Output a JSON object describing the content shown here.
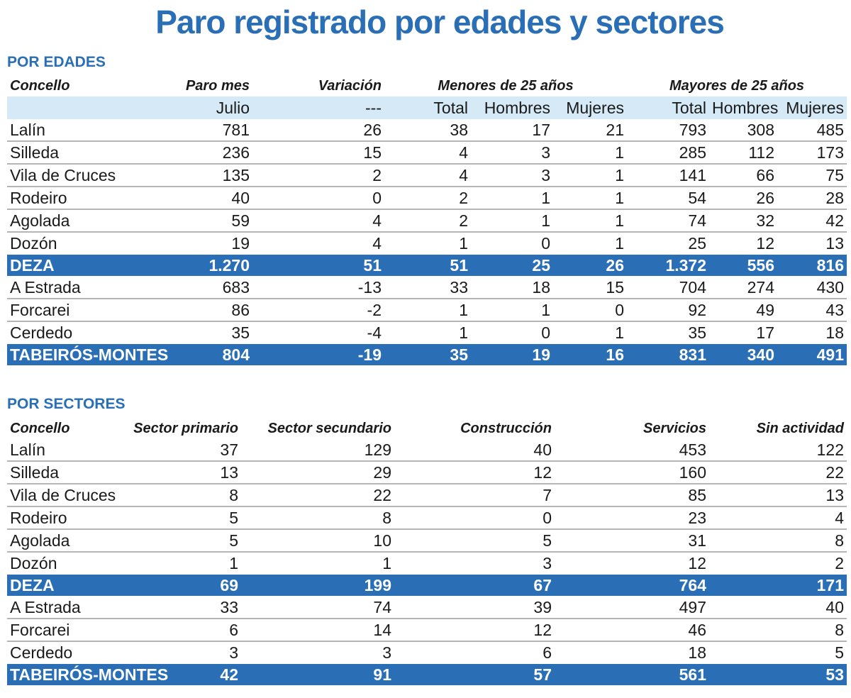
{
  "title": "Paro registrado por edades y sectores",
  "edades": {
    "section_label": "POR EDADES",
    "headers": {
      "concello": "Concello",
      "paro_mes": "Paro mes",
      "variacion": "Variación",
      "menores": "Menores de 25 años",
      "mayores": "Mayores de 25 años"
    },
    "subheaders": [
      "",
      "Julio",
      "---",
      "Total",
      "Hombres",
      "Mujeres",
      "Total",
      "Hombres",
      "Mujeres"
    ],
    "rows": [
      {
        "type": "row",
        "cells": [
          "Lalín",
          "781",
          "26",
          "38",
          "17",
          "21",
          "793",
          "308",
          "485"
        ]
      },
      {
        "type": "row",
        "cells": [
          "Silleda",
          "236",
          "15",
          "4",
          "3",
          "1",
          "285",
          "112",
          "173"
        ]
      },
      {
        "type": "row",
        "cells": [
          "Vila de Cruces",
          "135",
          "2",
          "4",
          "3",
          "1",
          "141",
          "66",
          "75"
        ]
      },
      {
        "type": "row",
        "cells": [
          "Rodeiro",
          "40",
          "0",
          "2",
          "1",
          "1",
          "54",
          "26",
          "28"
        ]
      },
      {
        "type": "row",
        "cells": [
          "Agolada",
          "59",
          "4",
          "2",
          "1",
          "1",
          "74",
          "32",
          "42"
        ]
      },
      {
        "type": "row",
        "cells": [
          "Dozón",
          "19",
          "4",
          "1",
          "0",
          "1",
          "25",
          "12",
          "13"
        ]
      },
      {
        "type": "total",
        "cells": [
          "DEZA",
          "1.270",
          "51",
          "51",
          "25",
          "26",
          "1.372",
          "556",
          "816"
        ]
      },
      {
        "type": "row",
        "cells": [
          "A Estrada",
          "683",
          "-13",
          "33",
          "18",
          "15",
          "704",
          "274",
          "430"
        ]
      },
      {
        "type": "row",
        "cells": [
          "Forcarei",
          "86",
          "-2",
          "1",
          "1",
          "0",
          "92",
          "49",
          "43"
        ]
      },
      {
        "type": "row",
        "cells": [
          "Cerdedo",
          "35",
          "-4",
          "1",
          "0",
          "1",
          "35",
          "17",
          "18"
        ]
      },
      {
        "type": "total",
        "cells": [
          "TABEIRÓS-MONTES",
          "804",
          "-19",
          "35",
          "19",
          "16",
          "831",
          "340",
          "491"
        ]
      }
    ]
  },
  "sectores": {
    "section_label": "POR SECTORES",
    "headers": [
      "Concello",
      "Sector primario",
      "Sector secundario",
      "Construcción",
      "Servicios",
      "Sin actividad"
    ],
    "rows": [
      {
        "type": "row",
        "cells": [
          "Lalín",
          "37",
          "129",
          "40",
          "453",
          "122"
        ]
      },
      {
        "type": "row",
        "cells": [
          "Silleda",
          "13",
          "29",
          "12",
          "160",
          "22"
        ]
      },
      {
        "type": "row",
        "cells": [
          "Vila de Cruces",
          "8",
          "22",
          "7",
          "85",
          "13"
        ]
      },
      {
        "type": "row",
        "cells": [
          "Rodeiro",
          "5",
          "8",
          "0",
          "23",
          "4"
        ]
      },
      {
        "type": "row",
        "cells": [
          "Agolada",
          "5",
          "10",
          "5",
          "31",
          "8"
        ]
      },
      {
        "type": "row",
        "cells": [
          "Dozón",
          "1",
          "1",
          "3",
          "12",
          "2"
        ]
      },
      {
        "type": "total",
        "cells": [
          "DEZA",
          "69",
          "199",
          "67",
          "764",
          "171"
        ]
      },
      {
        "type": "row",
        "cells": [
          "A Estrada",
          "33",
          "74",
          "39",
          "497",
          "40"
        ]
      },
      {
        "type": "row",
        "cells": [
          "Forcarei",
          "6",
          "14",
          "12",
          "46",
          "8"
        ]
      },
      {
        "type": "row",
        "cells": [
          "Cerdedo",
          "3",
          "3",
          "6",
          "18",
          "5"
        ]
      },
      {
        "type": "total",
        "cells": [
          "TABEIRÓS-MONTES",
          "42",
          "91",
          "57",
          "561",
          "53"
        ]
      }
    ]
  },
  "colors": {
    "accent": "#2a6fb6",
    "subheader_bg": "#d6e9f6",
    "row_rule": "#b5b5b5"
  }
}
